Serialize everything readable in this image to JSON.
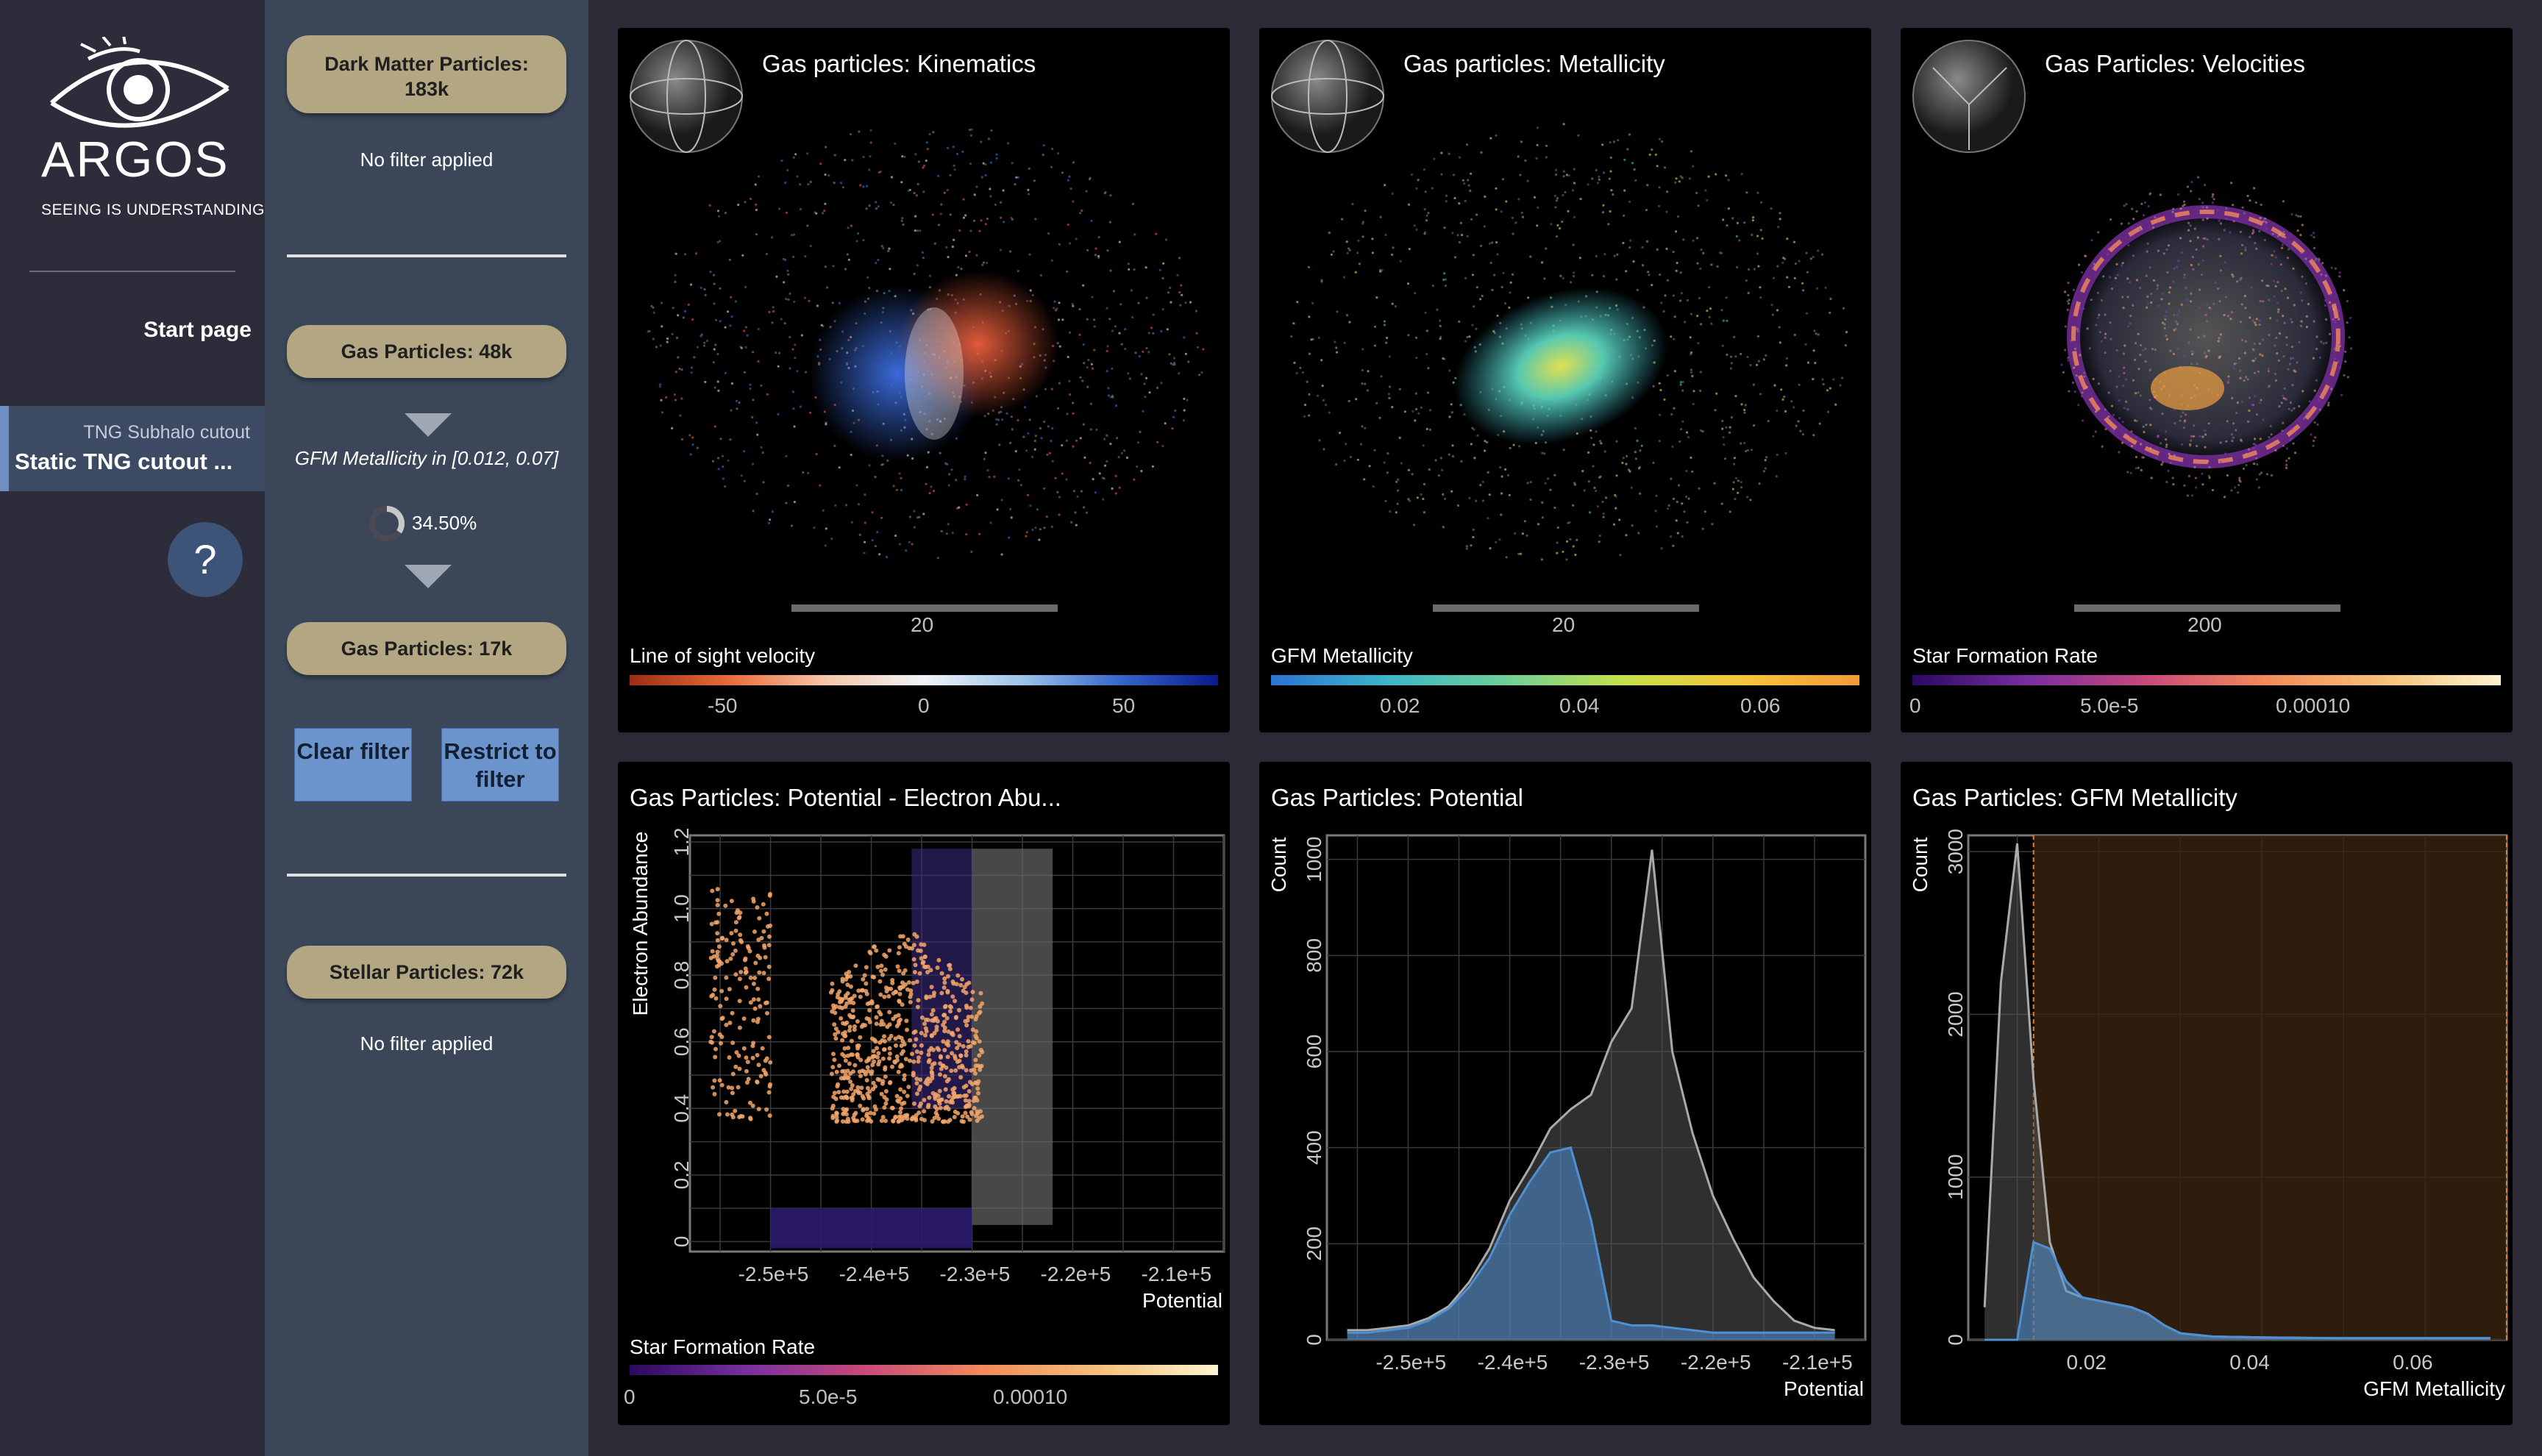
{
  "nav": {
    "logo_name": "ARGOS",
    "logo_tagline": "SEEING IS UNDERSTANDING",
    "start_page": "Start page",
    "item_subtitle": "TNG Subhalo cutout",
    "item_title": "Static TNG cutout ...",
    "help": "?"
  },
  "filters": {
    "pill1": "Dark Matter Particles: 183k",
    "no_filter_1": "No filter applied",
    "pill2": "Gas Particles: 48k",
    "filter_text": "GFM Metallicity in [0.012, 0.07]",
    "percent": "34.50%",
    "percent_value": 0.345,
    "pill3": "Gas Particles: 17k",
    "clear_button": "Clear filter",
    "restrict_button": "Restrict to filter",
    "pill4": "Stellar Particles: 72k",
    "no_filter_2": "No filter applied"
  },
  "panels": {
    "kinematics": {
      "title": "Gas particles: Kinematics",
      "scale": "20",
      "colorbar_label": "Line of sight velocity",
      "ticks": [
        "-50",
        "0",
        "50"
      ]
    },
    "metallicity": {
      "title": "Gas particles: Metallicity",
      "scale": "20",
      "colorbar_label": "GFM Metallicity",
      "ticks": [
        "0.02",
        "0.04",
        "0.06"
      ]
    },
    "velocities": {
      "title": "Gas Particles: Velocities",
      "scale": "200",
      "colorbar_label": "Star Formation Rate",
      "ticks": [
        "0",
        "5.0e-5",
        "0.00010"
      ]
    },
    "scatter": {
      "title": "Gas Particles: Potential - Electron Abu...",
      "colorbar_label": "Star Formation Rate",
      "ticks": [
        "0",
        "5.0e-5",
        "0.00010"
      ]
    },
    "hist_potential": {
      "title": "Gas Particles: Potential"
    },
    "hist_metallicity": {
      "title": "Gas Particles: GFM Metallicity"
    }
  },
  "colors": {
    "accent": "#6b93cc",
    "pill": "#b2a683",
    "selection": "#f3a66a",
    "histogram_filtered": "#4f8fd4"
  },
  "chart_data": [
    {
      "type": "scatter",
      "xlabel": "Potential",
      "ylabel": "Electron Abundance",
      "x_ticks": [
        "-2.5e+5",
        "-2.4e+5",
        "-2.3e+5",
        "-2.2e+5",
        "-2.1e+5"
      ],
      "y_ticks": [
        "0",
        "0.2",
        "0.4",
        "0.6",
        "0.8",
        "1.0",
        "1.2"
      ],
      "xlim": [
        -258000,
        -205000
      ],
      "ylim": [
        -0.03,
        1.22
      ],
      "selection_range": {
        "x": [
          -256000,
          -229000
        ],
        "y": [
          0.36,
          1.07
        ]
      }
    },
    {
      "type": "bar",
      "xlabel": "Potential",
      "ylabel": "Count",
      "x_ticks": [
        "-2.5e+5",
        "-2.4e+5",
        "-2.3e+5",
        "-2.2e+5",
        "-2.1e+5"
      ],
      "y_ticks": [
        "0",
        "200",
        "400",
        "600",
        "800",
        "1000"
      ],
      "xlim": [
        -258000,
        -205000
      ],
      "ylim": [
        0,
        1050
      ],
      "x": [
        -256000,
        -254000,
        -252000,
        -250000,
        -248000,
        -246000,
        -244000,
        -242000,
        -240000,
        -238000,
        -236000,
        -234000,
        -232000,
        -230000,
        -228000,
        -226000,
        -224000,
        -222000,
        -220000,
        -218000,
        -216000,
        -214000,
        -212000,
        -210000,
        -208000
      ],
      "series": [
        {
          "values": [
            20,
            20,
            25,
            30,
            45,
            70,
            120,
            190,
            290,
            360,
            440,
            480,
            510,
            620,
            690,
            1020,
            600,
            430,
            300,
            210,
            130,
            80,
            40,
            25,
            20
          ]
        },
        {
          "values": [
            15,
            15,
            20,
            25,
            40,
            65,
            110,
            170,
            260,
            330,
            390,
            400,
            250,
            40,
            30,
            30,
            25,
            20,
            15,
            15,
            15,
            15,
            15,
            15,
            15
          ]
        }
      ]
    },
    {
      "type": "bar",
      "xlabel": "GFM Metallicity",
      "ylabel": "Count",
      "x_ticks": [
        "0.02",
        "0.04",
        "0.06"
      ],
      "y_ticks": [
        "0",
        "1000",
        "2000",
        "3000"
      ],
      "xlim": [
        0.004,
        0.07
      ],
      "ylim": [
        0,
        3100
      ],
      "x": [
        0.006,
        0.008,
        0.01,
        0.012,
        0.014,
        0.016,
        0.018,
        0.02,
        0.022,
        0.024,
        0.026,
        0.028,
        0.03,
        0.034,
        0.04,
        0.05,
        0.06,
        0.068
      ],
      "series": [
        {
          "values": [
            200,
            2200,
            3050,
            1600,
            600,
            300,
            260,
            240,
            220,
            200,
            160,
            90,
            40,
            20,
            15,
            10,
            10,
            10
          ]
        },
        {
          "values": [
            0,
            0,
            0,
            600,
            560,
            360,
            260,
            240,
            220,
            200,
            160,
            90,
            40,
            20,
            15,
            10,
            10,
            10
          ]
        }
      ],
      "selection_range": [
        0.012,
        0.07
      ]
    }
  ]
}
